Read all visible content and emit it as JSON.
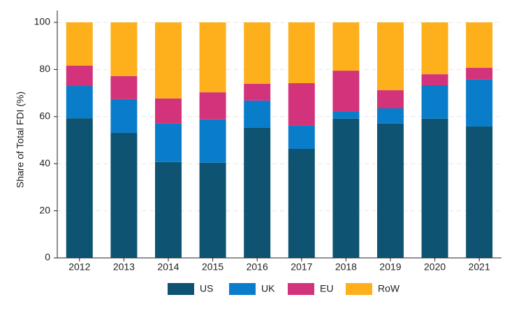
{
  "chart_data": {
    "type": "stacked_bar",
    "y_label": "Share of Total FDI (%)",
    "categories": [
      "2012",
      "2013",
      "2014",
      "2015",
      "2016",
      "2017",
      "2018",
      "2019",
      "2020",
      "2021"
    ],
    "series": [
      {
        "name": "US",
        "color": "#0e5371",
        "values": [
          59.3,
          53.1,
          40.7,
          40.4,
          55.2,
          46.3,
          59.1,
          57.0,
          59.1,
          55.8
        ]
      },
      {
        "name": "UK",
        "color": "#0a7dca",
        "values": [
          13.7,
          14.3,
          16.3,
          18.4,
          11.6,
          9.8,
          3.2,
          6.5,
          14.2,
          19.9
        ]
      },
      {
        "name": "EU",
        "color": "#d2337b",
        "values": [
          8.6,
          9.8,
          10.7,
          11.5,
          7.1,
          18.1,
          17.2,
          7.7,
          4.7,
          5.0
        ]
      },
      {
        "name": "RoW",
        "color": "#fdb01c",
        "values": [
          18.4,
          22.8,
          32.3,
          29.7,
          26.1,
          25.8,
          20.5,
          28.8,
          22.0,
          19.3
        ]
      }
    ],
    "ylim": [
      0,
      100
    ],
    "yticks": [
      0,
      20,
      40,
      60,
      80,
      100
    ],
    "grid": true
  }
}
